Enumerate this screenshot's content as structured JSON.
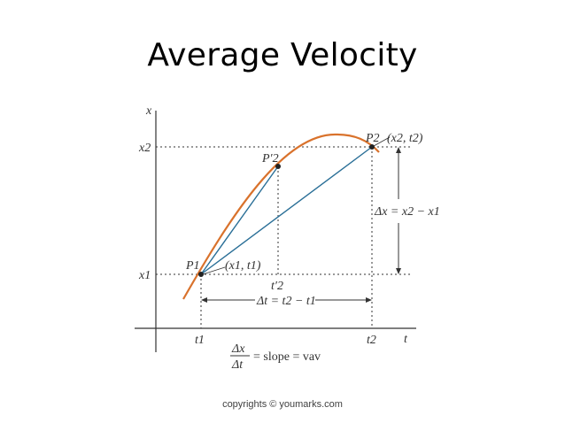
{
  "slide": {
    "title": "Average Velocity",
    "footer": "copyrights © youmarks.com"
  },
  "diagram": {
    "axes": {
      "x_axis_label": "t",
      "y_axis_label": "x"
    },
    "ticks": {
      "x1": "x1",
      "x2": "x2",
      "t1": "t1",
      "t2": "t2",
      "t2_prime": "t′2"
    },
    "points": {
      "p1": "P1",
      "p1_coords": "(x1, t1)",
      "p2": "P2",
      "p2_coords": "(x2, t2)",
      "p2_prime": "P′2"
    },
    "intervals": {
      "delta_x": "Δx = x2 − x1",
      "delta_t": "Δt = t2 − t1"
    },
    "formula": {
      "numerator": "Δx",
      "denominator": "Δt",
      "rhs": "= slope = vav"
    },
    "colors": {
      "curve": "#d9722c",
      "secant": "#2a6f97",
      "axis": "#333333",
      "dotted": "#333333"
    }
  }
}
